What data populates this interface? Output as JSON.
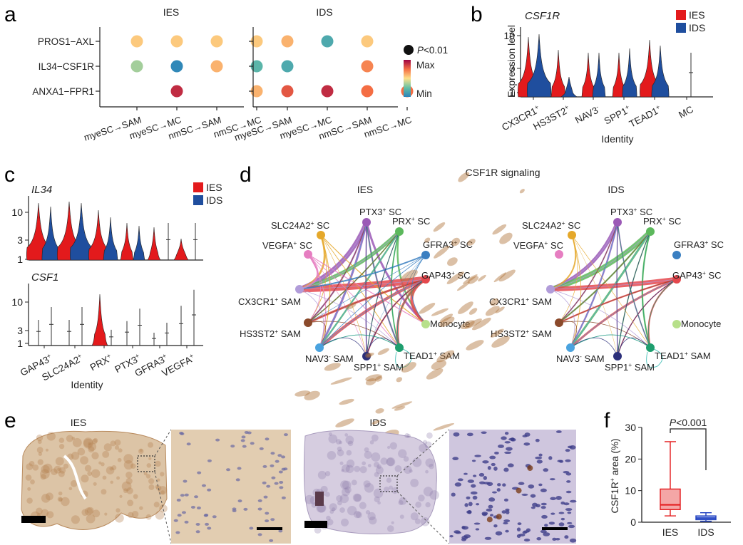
{
  "panels": {
    "a": "a",
    "b": "b",
    "c": "c",
    "d": "d",
    "e": "e",
    "f": "f"
  },
  "palette": {
    "ies": "#e31a1c",
    "ids": "#1f4e9e",
    "min": "#2b83ba",
    "max": "#9e0142"
  },
  "chart_data": [
    {
      "panel": "a",
      "type": "dotplot",
      "groups": [
        "IES",
        "IDS"
      ],
      "rows": [
        "PROS1−AXL",
        "IL34−CSF1R",
        "ANXA1−FPR1"
      ],
      "columns": [
        "myeSC→SAM",
        "myeSC→MC",
        "nmSC→SAM",
        "nmSC→MC"
      ],
      "values": {
        "IES": [
          [
            0.55,
            0.55,
            0.55,
            0.55
          ],
          [
            0.35,
            0.02,
            0.6,
            0.2
          ],
          [
            null,
            0.9,
            null,
            0.6
          ]
        ],
        "IDS": [
          [
            0.6,
            0.15,
            0.55,
            null
          ],
          [
            0.15,
            null,
            0.7,
            null
          ],
          [
            0.8,
            0.9,
            0.75,
            0.75
          ]
        ]
      },
      "legend": {
        "significance": "P<0.01",
        "p_prefix": "P",
        "p_suffix": "<0.01",
        "max": "Max",
        "min": "Min"
      }
    },
    {
      "panel": "b",
      "type": "violin",
      "gene": "CSF1R",
      "ylabel": "Expression level",
      "xlabel": "Identity",
      "yticks": [
        "10",
        "3",
        "1"
      ],
      "legend": [
        "IES",
        "IDS"
      ],
      "categories": [
        {
          "name": "CX3CR1",
          "sup": "+"
        },
        {
          "name": "HS3ST2",
          "sup": "+"
        },
        {
          "name": "NAV3",
          "sup": "-"
        },
        {
          "name": "SPP1",
          "sup": "+"
        },
        {
          "name": "TEAD1",
          "sup": "+"
        },
        {
          "name": "MC",
          "sup": ""
        }
      ]
    },
    {
      "panel": "c",
      "type": "violin",
      "genes": [
        "IL34",
        "CSF1"
      ],
      "xlabel": "Identity",
      "yticks": [
        "10",
        "3",
        "1"
      ],
      "legend": [
        "IES",
        "IDS"
      ],
      "categories": [
        {
          "name": "GAP43",
          "sup": "+"
        },
        {
          "name": "SLC24A2",
          "sup": "+"
        },
        {
          "name": "PRX",
          "sup": "+"
        },
        {
          "name": "PTX3",
          "sup": "+"
        },
        {
          "name": "GFRA3",
          "sup": "+"
        },
        {
          "name": "VEGFA",
          "sup": "+"
        }
      ]
    },
    {
      "panel": "d",
      "type": "network",
      "title": "CSF1R signaling",
      "groups": [
        "IES",
        "IDS"
      ],
      "nodes": [
        {
          "id": "slc",
          "name": "SLC24A2",
          "sup": "+",
          "tail": " SC",
          "color": "#e5a82a"
        },
        {
          "id": "ptx",
          "name": "PTX3",
          "sup": "+",
          "tail": " SC",
          "color": "#9b59b6"
        },
        {
          "id": "prx",
          "name": "PRX",
          "sup": "+",
          "tail": " SC",
          "color": "#5cb85c"
        },
        {
          "id": "gfra",
          "name": "GFRA3",
          "sup": "+",
          "tail": " SC",
          "color": "#3a7fc1"
        },
        {
          "id": "vegfa",
          "name": "VEGFA",
          "sup": "+",
          "tail": " SC",
          "color": "#e67ec1"
        },
        {
          "id": "gap",
          "name": "GAP43",
          "sup": "+",
          "tail": " SC",
          "color": "#e5484d"
        },
        {
          "id": "cx3",
          "name": "CX3CR1",
          "sup": "+",
          "tail": " SAM",
          "color": "#b19cd9"
        },
        {
          "id": "mono",
          "name": "Monocyte",
          "sup": "",
          "tail": "",
          "color": "#b7e08a"
        },
        {
          "id": "hs3",
          "name": "HS3ST2",
          "sup": "+",
          "tail": " SAM",
          "color": "#8b4a2b"
        },
        {
          "id": "nav",
          "name": "NAV3",
          "sup": "-",
          "tail": " SAM",
          "color": "#4aa3df"
        },
        {
          "id": "tead",
          "name": "TEAD1",
          "sup": "+",
          "tail": " SAM",
          "color": "#1e9e6e"
        },
        {
          "id": "spp",
          "name": "SPP1",
          "sup": "+",
          "tail": " SAM",
          "color": "#2c2f7a"
        }
      ]
    },
    {
      "panel": "e",
      "type": "histology",
      "labels": [
        "IES",
        "IDS"
      ]
    },
    {
      "panel": "f",
      "type": "box",
      "ylabel": "CSF1R",
      "ylabel_sup": "+",
      "ylabel_tail": " area (%)",
      "categories": [
        "IES",
        "IDS"
      ],
      "ylim": [
        0,
        30
      ],
      "yticks": [
        0,
        10,
        20,
        30
      ],
      "annotation": {
        "p_prefix": "P",
        "p_suffix": "<0.001"
      },
      "boxes": [
        {
          "min": 2,
          "q1": 4,
          "median": 5.5,
          "q3": 10.5,
          "max": 25.5,
          "color": "#e31a1c",
          "fill": "#f4a6a6"
        },
        {
          "min": 0.3,
          "q1": 0.8,
          "median": 1.3,
          "q3": 2,
          "max": 3,
          "color": "#1f3fbf",
          "fill": "#9fb0ee"
        }
      ]
    }
  ]
}
